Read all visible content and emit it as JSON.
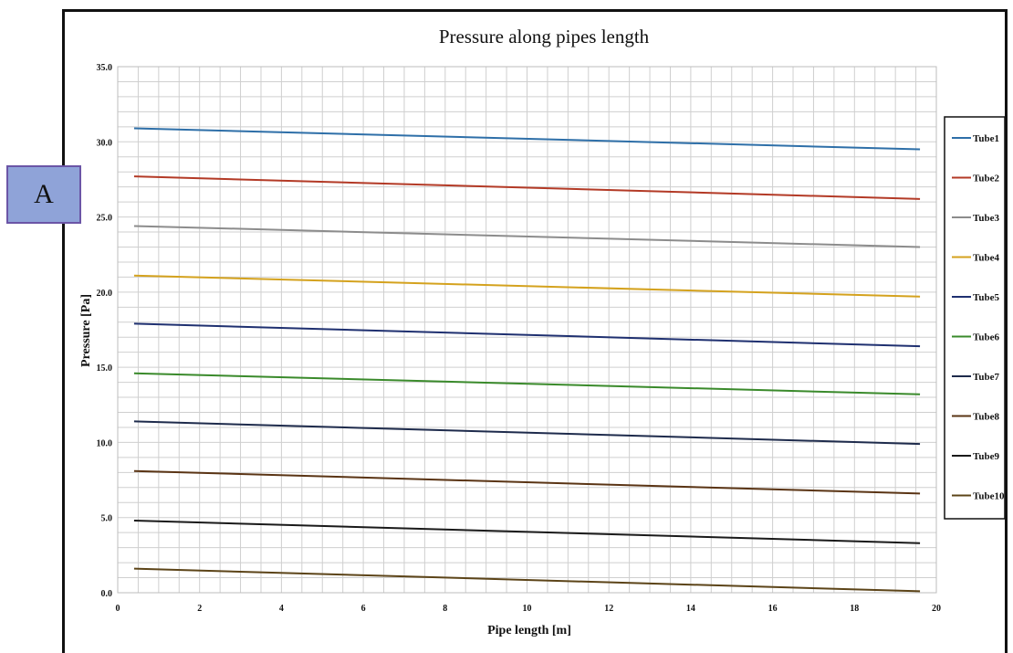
{
  "label_box": {
    "text": "A"
  },
  "chart_data": {
    "type": "line",
    "title": "Pressure along pipes length",
    "xlabel": "Pipe length  [m]",
    "ylabel": "Pressure  [Pa]",
    "xlim": [
      0,
      20
    ],
    "ylim": [
      0,
      35
    ],
    "xticks": [
      0,
      2,
      4,
      6,
      8,
      10,
      12,
      14,
      16,
      18,
      20
    ],
    "yticks": [
      "0.0",
      "5.0",
      "10.0",
      "15.0",
      "20.0",
      "25.0",
      "30.0",
      "35.0"
    ],
    "grid": true,
    "legend_position": "right",
    "x": [
      0.4,
      19.6
    ],
    "series": [
      {
        "name": "Tube1",
        "color": "#2e6fa8",
        "values": [
          30.9,
          29.5
        ]
      },
      {
        "name": "Tube2",
        "color": "#b33a26",
        "values": [
          27.7,
          26.2
        ]
      },
      {
        "name": "Tube3",
        "color": "#8c8c8c",
        "values": [
          24.4,
          23.0
        ]
      },
      {
        "name": "Tube4",
        "color": "#d4a21e",
        "values": [
          21.1,
          19.7
        ]
      },
      {
        "name": "Tube5",
        "color": "#1f3070",
        "values": [
          17.9,
          16.4
        ]
      },
      {
        "name": "Tube6",
        "color": "#3a8a2b",
        "values": [
          14.6,
          13.2
        ]
      },
      {
        "name": "Tube7",
        "color": "#1e2b4c",
        "values": [
          11.4,
          9.9
        ]
      },
      {
        "name": "Tube8",
        "color": "#5a3414",
        "values": [
          8.1,
          6.6
        ]
      },
      {
        "name": "Tube9",
        "color": "#1a1a1a",
        "values": [
          4.8,
          3.3
        ]
      },
      {
        "name": "Tube10",
        "color": "#5c4418",
        "values": [
          1.6,
          0.1
        ]
      }
    ]
  }
}
